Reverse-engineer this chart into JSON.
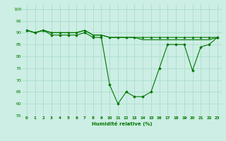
{
  "background_color": "#cceee4",
  "grid_color": "#aaddcc",
  "line_color": "#007700",
  "xlabel": "Humidité relative (%)",
  "xlim": [
    -0.5,
    23.5
  ],
  "ylim": [
    55,
    102
  ],
  "yticks": [
    55,
    60,
    65,
    70,
    75,
    80,
    85,
    90,
    95,
    100
  ],
  "xticks": [
    0,
    1,
    2,
    3,
    4,
    5,
    6,
    7,
    8,
    9,
    10,
    11,
    12,
    13,
    14,
    15,
    16,
    17,
    18,
    19,
    20,
    21,
    22,
    23
  ],
  "series1_x": [
    0,
    1,
    2,
    3,
    4,
    5,
    6,
    7,
    8,
    9,
    10,
    11,
    12,
    13,
    14,
    15,
    16,
    17,
    18,
    19,
    20,
    21,
    22,
    23
  ],
  "series1_y": [
    91,
    90,
    91,
    90,
    90,
    90,
    90,
    91,
    89,
    89,
    88,
    88,
    88,
    88,
    88,
    88,
    88,
    88,
    88,
    88,
    88,
    88,
    88,
    88
  ],
  "series2_x": [
    0,
    1,
    2,
    3,
    4,
    5,
    6,
    7,
    8,
    9,
    10,
    11,
    12,
    13,
    14,
    15,
    16,
    17,
    18,
    19,
    20,
    21,
    22,
    23
  ],
  "series2_y": [
    91,
    90,
    91,
    90,
    90,
    90,
    90,
    91,
    89,
    89,
    88,
    88,
    88,
    88,
    87,
    87,
    87,
    87,
    87,
    87,
    87,
    87,
    87,
    88
  ],
  "series3_x": [
    0,
    1,
    2,
    3,
    4,
    5,
    6,
    7,
    8,
    9,
    10,
    11,
    12,
    13,
    14,
    15,
    16,
    17,
    18,
    19,
    20,
    21,
    22,
    23
  ],
  "series3_y": [
    91,
    90,
    91,
    89,
    89,
    89,
    89,
    90,
    88,
    88,
    68,
    60,
    65,
    63,
    63,
    65,
    75,
    85,
    85,
    85,
    74,
    84,
    85,
    88
  ]
}
